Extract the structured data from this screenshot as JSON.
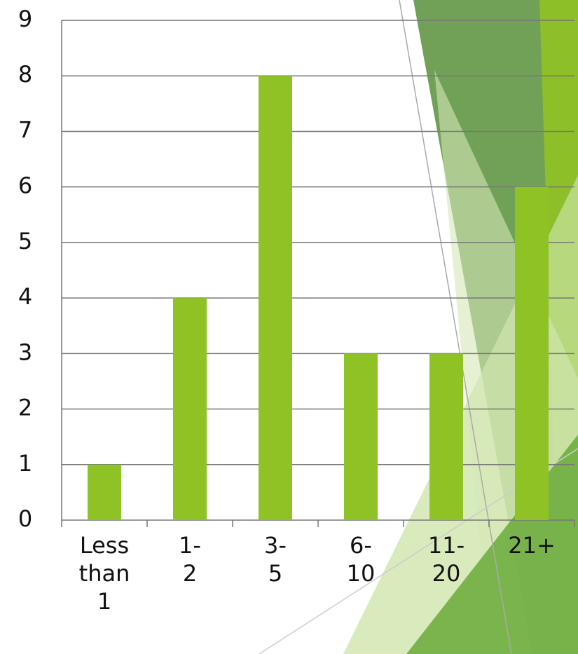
{
  "chart_data": {
    "type": "bar",
    "categories": [
      "Less than 1",
      "1-2",
      "3-5",
      "6-10",
      "11-20",
      "21+"
    ],
    "values": [
      1,
      4,
      8,
      3,
      3,
      6
    ],
    "color": "#8fc224",
    "ylim": [
      0,
      9
    ],
    "yticks": [
      0,
      1,
      2,
      3,
      4,
      5,
      6,
      7,
      8,
      9
    ],
    "grid": true
  }
}
